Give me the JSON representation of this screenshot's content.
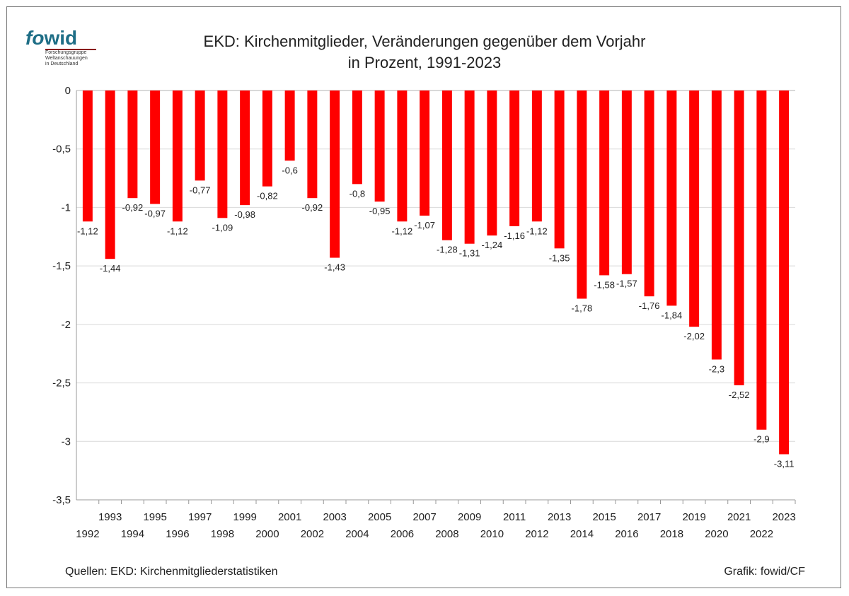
{
  "logo": {
    "brand_a": "fo",
    "brand_b": "wid",
    "sub1": "Forschungsgruppe",
    "sub2": "Weltanschauungen",
    "sub3": "in Deutschland"
  },
  "header": {
    "title_line1": "EKD: Kirchenmitglieder, Veränderungen gegenüber dem Vorjahr",
    "title_line2": "in Prozent, 1991-2023"
  },
  "footer": {
    "source": "Quellen: EKD: Kirchenmitgliederstatistiken",
    "credit": "Grafik: fowid/CF"
  },
  "colors": {
    "bar": "#ff0000",
    "grid": "#d9d9d9",
    "axis": "#999999"
  },
  "chart_data": {
    "type": "bar",
    "title": "EKD: Kirchenmitglieder, Veränderungen gegenüber dem Vorjahr in Prozent, 1991-2023",
    "xlabel": "",
    "ylabel": "",
    "ylim": [
      -3.5,
      0
    ],
    "yticks": [
      0,
      -0.5,
      -1,
      -1.5,
      -2,
      -2.5,
      -3,
      -3.5
    ],
    "ytick_labels": [
      "0",
      "-0,5",
      "-1",
      "-1,5",
      "-2",
      "-2,5",
      "-3",
      "-3,5"
    ],
    "grid": true,
    "categories": [
      "1992",
      "1993",
      "1994",
      "1995",
      "1996",
      "1997",
      "1998",
      "1999",
      "2000",
      "2001",
      "2002",
      "2003",
      "2004",
      "2005",
      "2006",
      "2007",
      "2008",
      "2009",
      "2010",
      "2011",
      "2012",
      "2013",
      "2014",
      "2015",
      "2016",
      "2017",
      "2018",
      "2019",
      "2020",
      "2021",
      "2022",
      "2023"
    ],
    "values": [
      -1.12,
      -1.44,
      -0.92,
      -0.97,
      -1.12,
      -0.77,
      -1.09,
      -0.98,
      -0.82,
      -0.6,
      -0.92,
      -1.43,
      -0.8,
      -0.95,
      -1.12,
      -1.07,
      -1.28,
      -1.31,
      -1.24,
      -1.16,
      -1.12,
      -1.35,
      -1.78,
      -1.58,
      -1.57,
      -1.76,
      -1.84,
      -2.02,
      -2.3,
      -2.52,
      -2.9,
      -3.11
    ],
    "value_labels": [
      "-1,12",
      "-1,44",
      "-0,92",
      "-0,97",
      "-1,12",
      "-0,77",
      "-1,09",
      "-0,98",
      "-0,82",
      "-0,6",
      "-0,92",
      "-1,43",
      "-0,8",
      "-0,95",
      "-1,12",
      "-1,07",
      "-1,28",
      "-1,31",
      "-1,24",
      "-1,16",
      "-1,12",
      "-1,35",
      "-1,78",
      "-1,58",
      "-1,57",
      "-1,76",
      "-1,84",
      "-2,02",
      "-2,3",
      "-2,52",
      "-2,9",
      "-3,11"
    ]
  }
}
